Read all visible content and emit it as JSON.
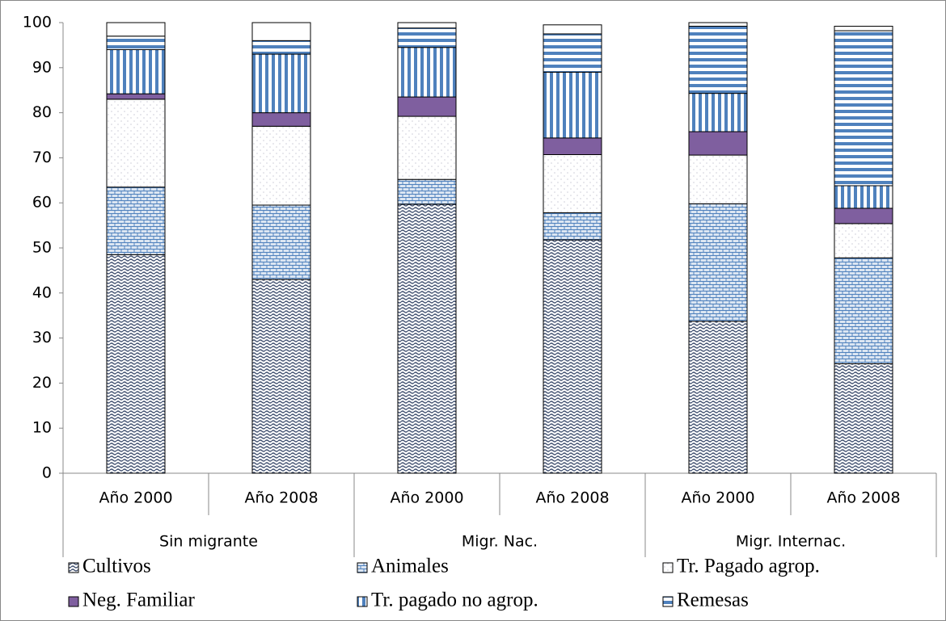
{
  "chart_data": {
    "type": "stacked_bar",
    "categories": [
      "Año 2000",
      "Año 2008",
      "Año 2000",
      "Año 2008",
      "Año 2000",
      "Año 2008"
    ],
    "groups": [
      "Sin migrante",
      "Migr. Nac.",
      "Migr. Internac."
    ],
    "ylim": [
      0,
      100
    ],
    "yticks": [
      0,
      10,
      20,
      30,
      40,
      50,
      60,
      70,
      80,
      90,
      100
    ],
    "grid": false,
    "legend": "bottom",
    "series": [
      {
        "name": "Cultivos",
        "color": "#3f4f6f",
        "pattern": "wave",
        "values": [
          48.5,
          43,
          59.7,
          51.8,
          33.7,
          24.3
        ]
      },
      {
        "name": "Animales",
        "color": "#4f81bd",
        "pattern": "brick",
        "values": [
          15,
          16.5,
          5.5,
          6,
          26.1,
          23.5
        ]
      },
      {
        "name": "Tr. Pagado agrop.",
        "color": "#b0b0c0",
        "pattern": "dots",
        "values": [
          19.5,
          17.5,
          14,
          12.9,
          10.8,
          7.6
        ]
      },
      {
        "name": "Neg. Familiar",
        "color": "#7f5f9f",
        "pattern": "solid",
        "values": [
          1.2,
          3,
          4.3,
          3.7,
          5.2,
          3.4
        ]
      },
      {
        "name": "Tr. pagado no agrop.",
        "color": "#4f81bd",
        "pattern": "vstripe",
        "values": [
          9.8,
          13,
          11,
          14.6,
          8.5,
          5
        ]
      },
      {
        "name": "Remesas",
        "color": "#4f81bd",
        "pattern": "hstripe",
        "values": [
          3,
          3,
          4.3,
          8.5,
          14.9,
          34.4
        ]
      },
      {
        "name": null,
        "color": "#ffffff",
        "pattern": "none",
        "values": [
          3,
          4,
          1.2,
          2,
          0.8,
          1
        ]
      }
    ]
  }
}
